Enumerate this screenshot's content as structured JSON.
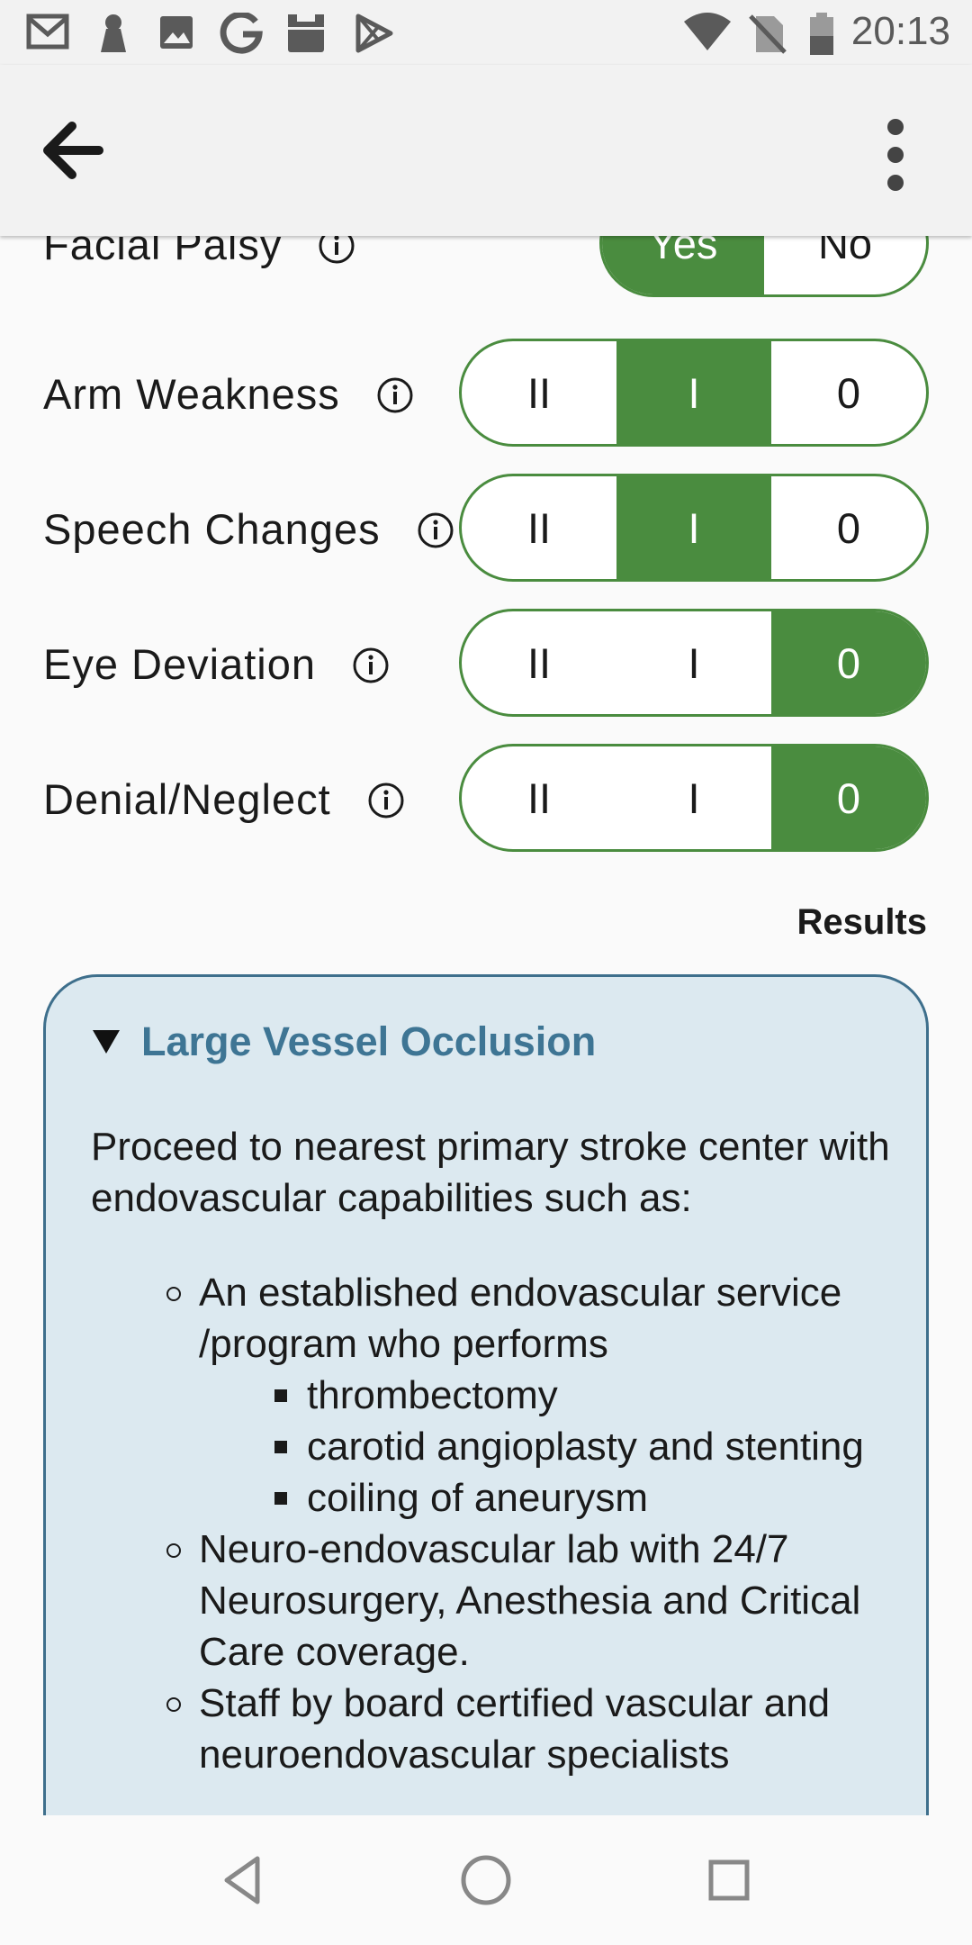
{
  "status_bar": {
    "time": "20:13",
    "left_icons": [
      "gmail-icon",
      "keyhole-icon",
      "image-icon",
      "google-icon",
      "calendar-icon",
      "play-store-icon"
    ],
    "right_icons": [
      "wifi-icon",
      "no-sim-icon",
      "battery-icon"
    ]
  },
  "app_bar": {
    "back_icon": "arrow-left-icon",
    "menu_icon": "more-vert-icon"
  },
  "assessment": {
    "rows": [
      {
        "label": "Facial Palsy",
        "options": [
          "Yes",
          "No"
        ],
        "selected": "Yes"
      },
      {
        "label": "Arm Weakness",
        "options": [
          "II",
          "I",
          "0"
        ],
        "selected": "I"
      },
      {
        "label": "Speech Changes",
        "options": [
          "II",
          "I",
          "0"
        ],
        "selected": "I"
      },
      {
        "label": "Eye Deviation",
        "options": [
          "II",
          "I",
          "0"
        ],
        "selected": "0"
      },
      {
        "label": "Denial/Neglect",
        "options": [
          "II",
          "I",
          "0"
        ],
        "selected": "0"
      }
    ]
  },
  "results": {
    "label": "Results",
    "card": {
      "title": "Large Vessel Occlusion",
      "intro": "Proceed to nearest primary stroke center with endovascular capabilities such as:",
      "items": [
        {
          "text": "An established endovascular service /program who performs",
          "sub": [
            "thrombectomy",
            "carotid angioplasty and stenting",
            "coiling of aneurysm"
          ]
        },
        {
          "text": "Neuro-endovascular lab with 24/7 Neurosurgery, Anesthesia and Critical Care coverage."
        },
        {
          "text": "Staff by board certified vascular and neuroendovascular specialists"
        }
      ]
    }
  },
  "colors": {
    "accent_green": "#4a8c3f",
    "card_bg": "#dce9f0",
    "card_border": "#3e6f8c",
    "card_title": "#3e7594"
  }
}
